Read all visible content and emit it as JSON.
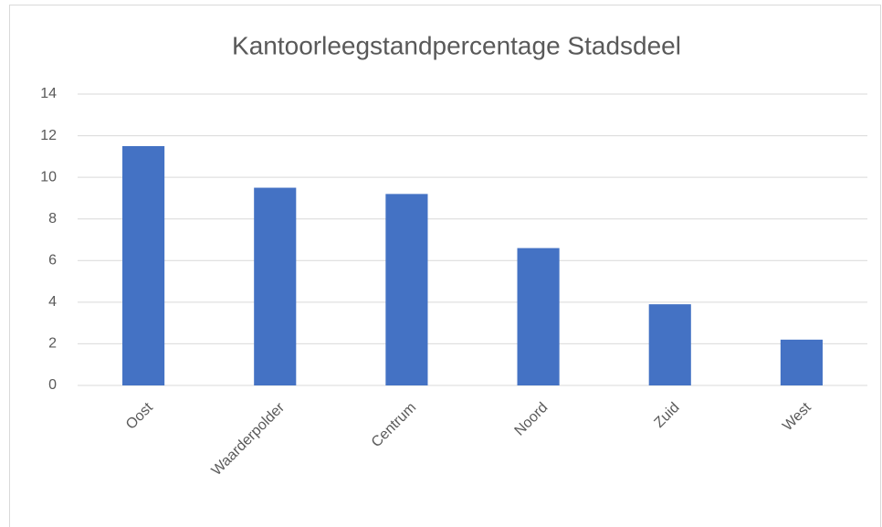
{
  "chart_data": {
    "type": "bar",
    "title": "Kantoorleegstandpercentage Stadsdeel",
    "categories": [
      "Oost",
      "Waarderpolder",
      "Centrum",
      "Noord",
      "Zuid",
      "West"
    ],
    "values": [
      11.5,
      9.5,
      9.2,
      6.6,
      3.9,
      2.2
    ],
    "color": "#4472c4",
    "ylim": [
      0,
      14
    ],
    "yticks": [
      0,
      2,
      4,
      6,
      8,
      10,
      12,
      14
    ],
    "grid": true
  }
}
